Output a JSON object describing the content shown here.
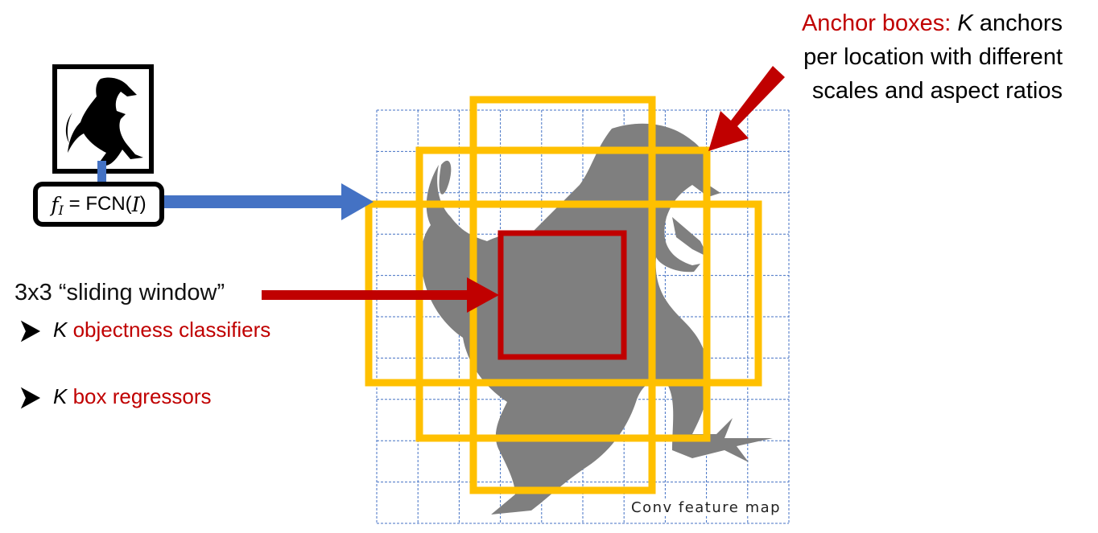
{
  "fcn_box": {
    "f_symbol": "f",
    "f_subscript": "I",
    "equals": "=",
    "function": "FCN(",
    "arg": "I",
    "close": ")"
  },
  "anchor_label": {
    "prefix": "Anchor boxes:",
    "K": "K",
    "line1_rest": "anchors",
    "line2": "per location with different",
    "line3": "scales and aspect ratios"
  },
  "sliding_window": {
    "title": "3x3 “sliding window”",
    "bullet_icon": "arrow-bullet-icon",
    "items": [
      {
        "K": "K",
        "text": "objectness classifiers"
      },
      {
        "K": "K",
        "text": "box regressors"
      }
    ]
  },
  "feature_map": {
    "label": "Conv feature map"
  },
  "colors": {
    "grid": "#4472c4",
    "anchor": "#ffc000",
    "window": "#c00000",
    "blue_arrow": "#4472c4",
    "red_arrow": "#c00000",
    "dino": "#7f7f7f"
  }
}
